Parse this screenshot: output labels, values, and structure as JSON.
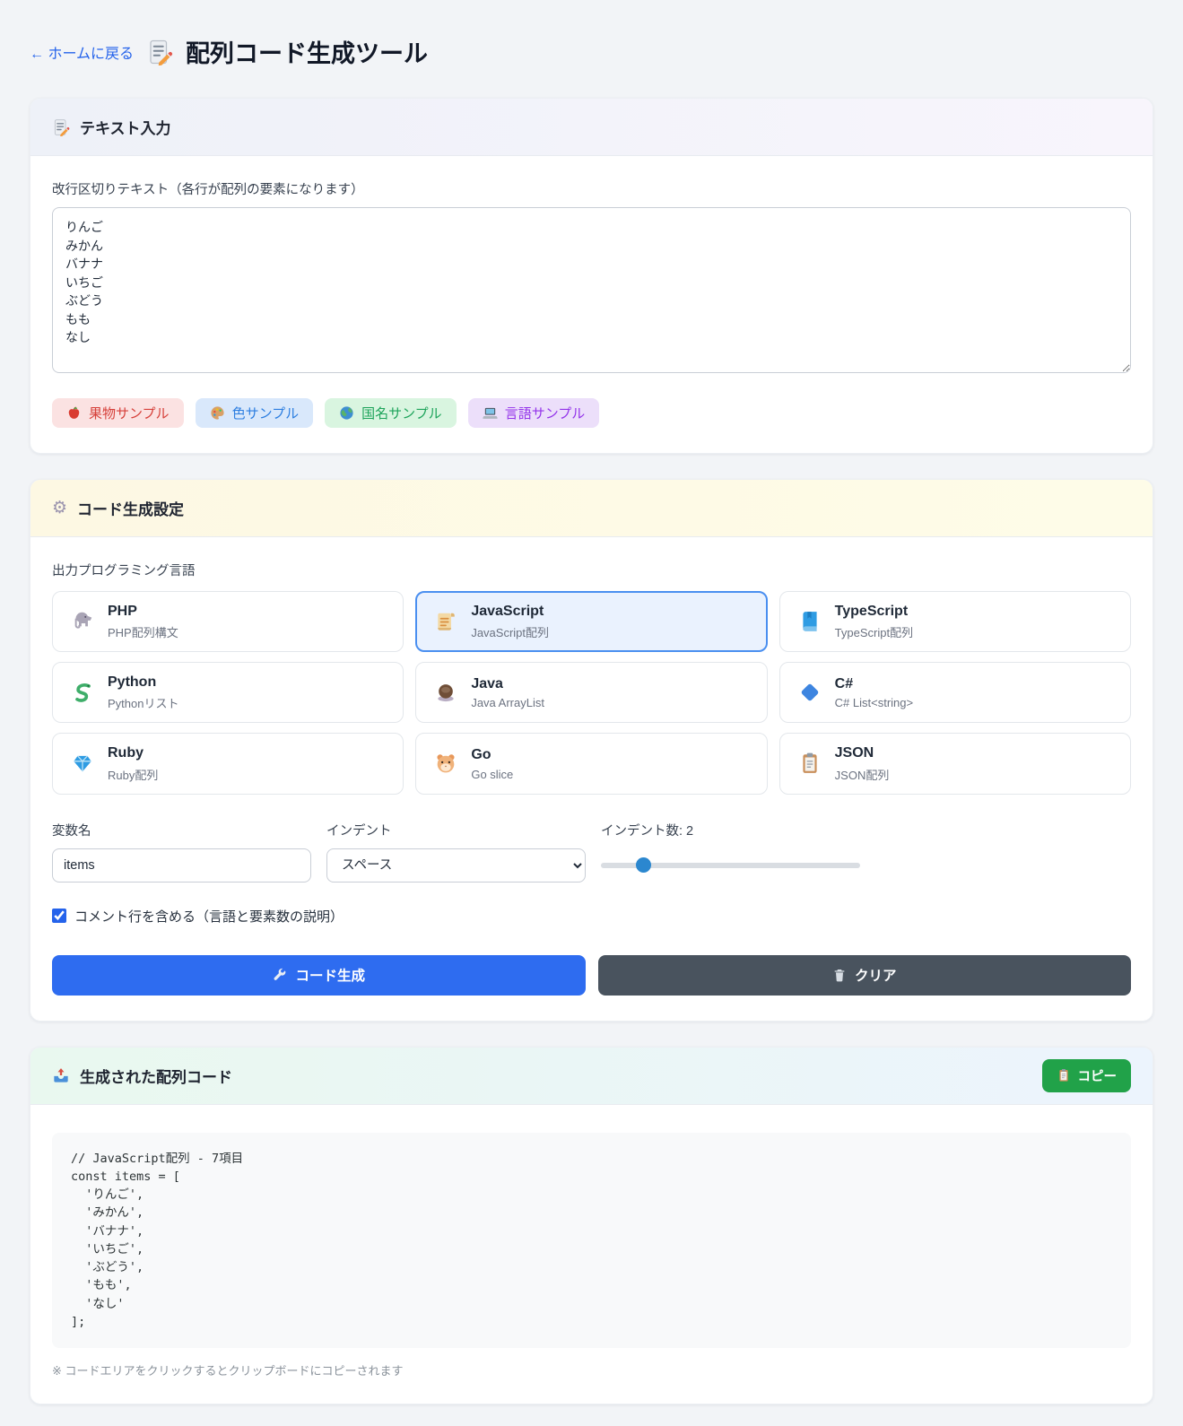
{
  "page": {
    "back_link": "← ホームに戻る",
    "title": "配列コード生成ツール"
  },
  "colors": {
    "primary_button": "#2e6cf0",
    "clear_button": "#49535e",
    "copy_button": "#21a249",
    "selected_language_border": "#4a8ff0",
    "selected_language_bg": "#eaf2fe",
    "slider_thumb": "#2b87cf"
  },
  "input_card": {
    "header": "テキスト入力",
    "label": "改行区切りテキスト（各行が配列の要素になります）",
    "textarea_value": "りんご\nみかん\nバナナ\nいちご\nぶどう\nもも\nなし",
    "samples": [
      {
        "label": "果物サンプル",
        "icon": "apple-icon",
        "bg": "#fbe2e2",
        "fg": "#d6403a"
      },
      {
        "label": "色サンプル",
        "icon": "palette-icon",
        "bg": "#d9e8fb",
        "fg": "#2b7de0"
      },
      {
        "label": "国名サンプル",
        "icon": "globe-icon",
        "bg": "#d9f5e0",
        "fg": "#1ea45b"
      },
      {
        "label": "言語サンプル",
        "icon": "laptop-icon",
        "bg": "#ecdffa",
        "fg": "#9333ea"
      }
    ]
  },
  "settings_card": {
    "header": "コード生成設定",
    "language_label": "出力プログラミング言語",
    "languages": [
      {
        "name": "PHP",
        "desc": "PHP配列構文",
        "icon": "elephant-icon",
        "selected": false
      },
      {
        "name": "JavaScript",
        "desc": "JavaScript配列",
        "icon": "scroll-icon",
        "selected": true
      },
      {
        "name": "TypeScript",
        "desc": "TypeScript配列",
        "icon": "book-icon",
        "selected": false
      },
      {
        "name": "Python",
        "desc": "Pythonリスト",
        "icon": "snake-icon",
        "selected": false
      },
      {
        "name": "Java",
        "desc": "Java ArrayList",
        "icon": "coffee-icon",
        "selected": false
      },
      {
        "name": "C#",
        "desc": "C# List<string>",
        "icon": "diamond-icon",
        "selected": false
      },
      {
        "name": "Ruby",
        "desc": "Ruby配列",
        "icon": "gem-icon",
        "selected": false
      },
      {
        "name": "Go",
        "desc": "Go slice",
        "icon": "hamster-icon",
        "selected": false
      },
      {
        "name": "JSON",
        "desc": "JSON配列",
        "icon": "clipboard-icon",
        "selected": false
      }
    ],
    "variable_label": "変数名",
    "variable_value": "items",
    "indent_label": "インデント",
    "indent_value": "スペース",
    "indent_count_label": "インデント数: 2",
    "indent_count": 2,
    "indent_count_min": 1,
    "indent_count_max": 8,
    "comment_checkbox_label": "コメント行を含める（言語と要素数の説明）",
    "comment_checkbox_checked": true,
    "generate_button": "コード生成",
    "clear_button": "クリア"
  },
  "output_card": {
    "header": "生成された配列コード",
    "copy_button": "コピー",
    "code": "// JavaScript配列 - 7項目\nconst items = [\n  'りんご',\n  'みかん',\n  'バナナ',\n  'いちご',\n  'ぶどう',\n  'もも',\n  'なし'\n];",
    "note": "※ コードエリアをクリックするとクリップボードにコピーされます"
  }
}
